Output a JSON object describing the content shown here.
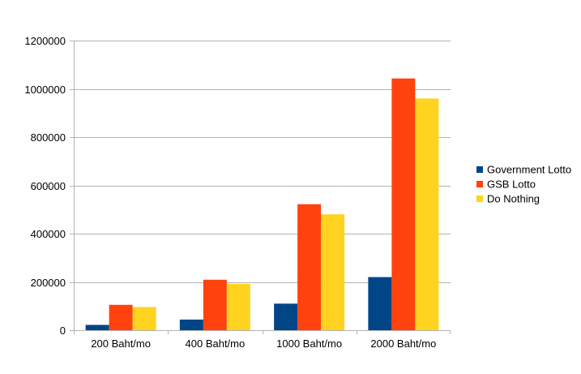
{
  "chart_data": {
    "type": "bar",
    "title": "",
    "xlabel": "",
    "ylabel": "",
    "categories": [
      "200 Baht/mo",
      "400 Baht/mo",
      "1000 Baht/mo",
      "2000 Baht/mo"
    ],
    "series": [
      {
        "name": "Government Lotto",
        "color": "#004586",
        "values": [
          22000,
          44000,
          110000,
          220000
        ]
      },
      {
        "name": "GSB Lotto",
        "color": "#ff420e",
        "values": [
          105000,
          209000,
          522000,
          1043000
        ]
      },
      {
        "name": "Do Nothing",
        "color": "#ffd320",
        "values": [
          96000,
          192000,
          480000,
          960000
        ]
      }
    ],
    "ylim": [
      0,
      1200000
    ],
    "yticks": [
      0,
      200000,
      400000,
      600000,
      800000,
      1000000,
      1200000
    ],
    "ytick_labels": [
      "0",
      "200000",
      "400000",
      "600000",
      "800000",
      "1000000",
      "1200000"
    ],
    "grid": true,
    "legend_position": "right"
  }
}
